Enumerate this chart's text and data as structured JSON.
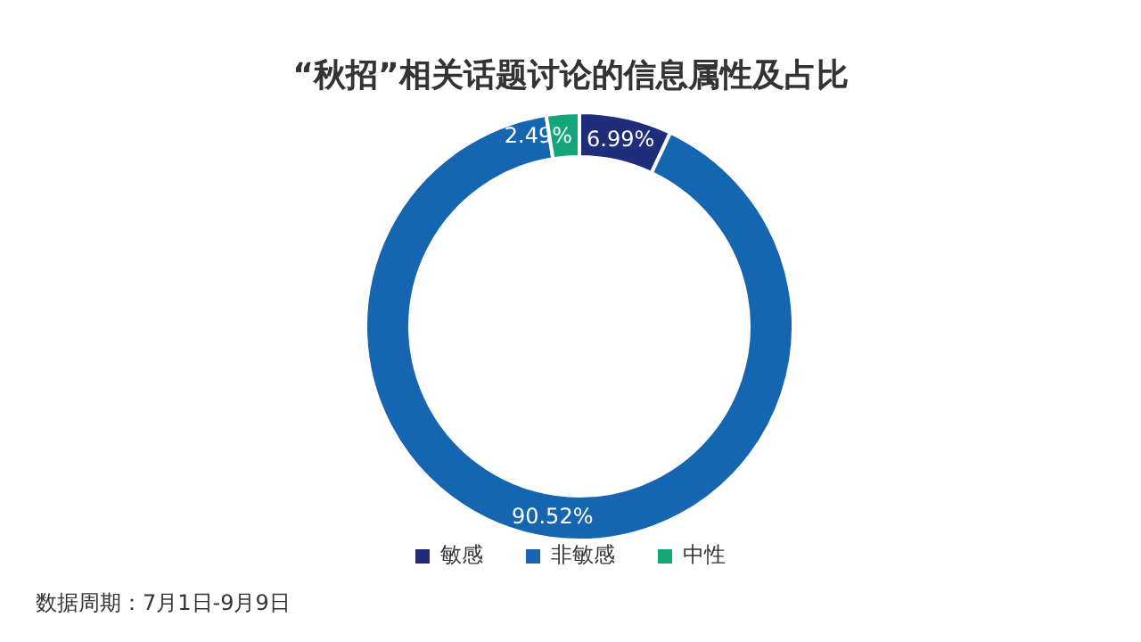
{
  "chart_data": {
    "type": "donut",
    "title": "“秋招”相关话题讨论的信息属性及占比",
    "categories": [
      "敏感",
      "非敏感",
      "中性"
    ],
    "values": [
      6.99,
      90.52,
      2.49
    ],
    "colors": [
      "#1f2d7a",
      "#1565b0",
      "#16a47a"
    ],
    "value_labels": [
      "6.99%",
      "90.52%",
      "2.49%"
    ],
    "legend": "bottom",
    "annotations": [
      "数据周期：7月1日-9月9日"
    ]
  }
}
